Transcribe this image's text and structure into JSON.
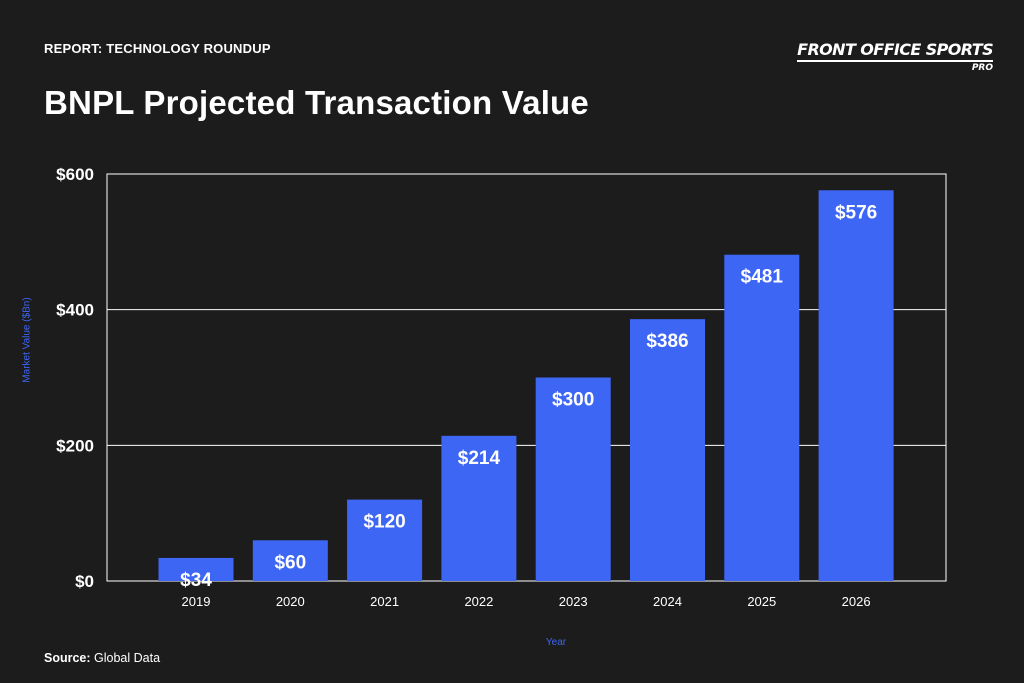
{
  "header": {
    "kicker": "REPORT: TECHNOLOGY ROUNDUP",
    "title": "BNPL Projected Transaction Value"
  },
  "logo": {
    "main": "FRONT OFFICE SPORTS",
    "sub": "PRO"
  },
  "footer": {
    "source_label": "Source:",
    "source_value": " Global Data"
  },
  "colors": {
    "background": "#1c1c1c",
    "bar": "#3e66f5",
    "text": "#ffffff",
    "axis_title": "#3e66f5",
    "grid": "#ffffff"
  },
  "chart_data": {
    "type": "bar",
    "categories": [
      "2019",
      "2020",
      "2021",
      "2022",
      "2023",
      "2024",
      "2025",
      "2026"
    ],
    "values": [
      34,
      60,
      120,
      214,
      300,
      386,
      481,
      576
    ],
    "data_labels": [
      "$34",
      "$60",
      "$120",
      "$214",
      "$300",
      "$386",
      "$481",
      "$576"
    ],
    "xlabel": "Year",
    "ylabel": "Market Value ($Bn)",
    "ylim": [
      0,
      600
    ],
    "yticks": [
      0,
      200,
      400,
      600
    ],
    "ytick_labels": [
      "$0",
      "$200",
      "$400",
      "$600"
    ],
    "grid": true,
    "legend": "none"
  }
}
